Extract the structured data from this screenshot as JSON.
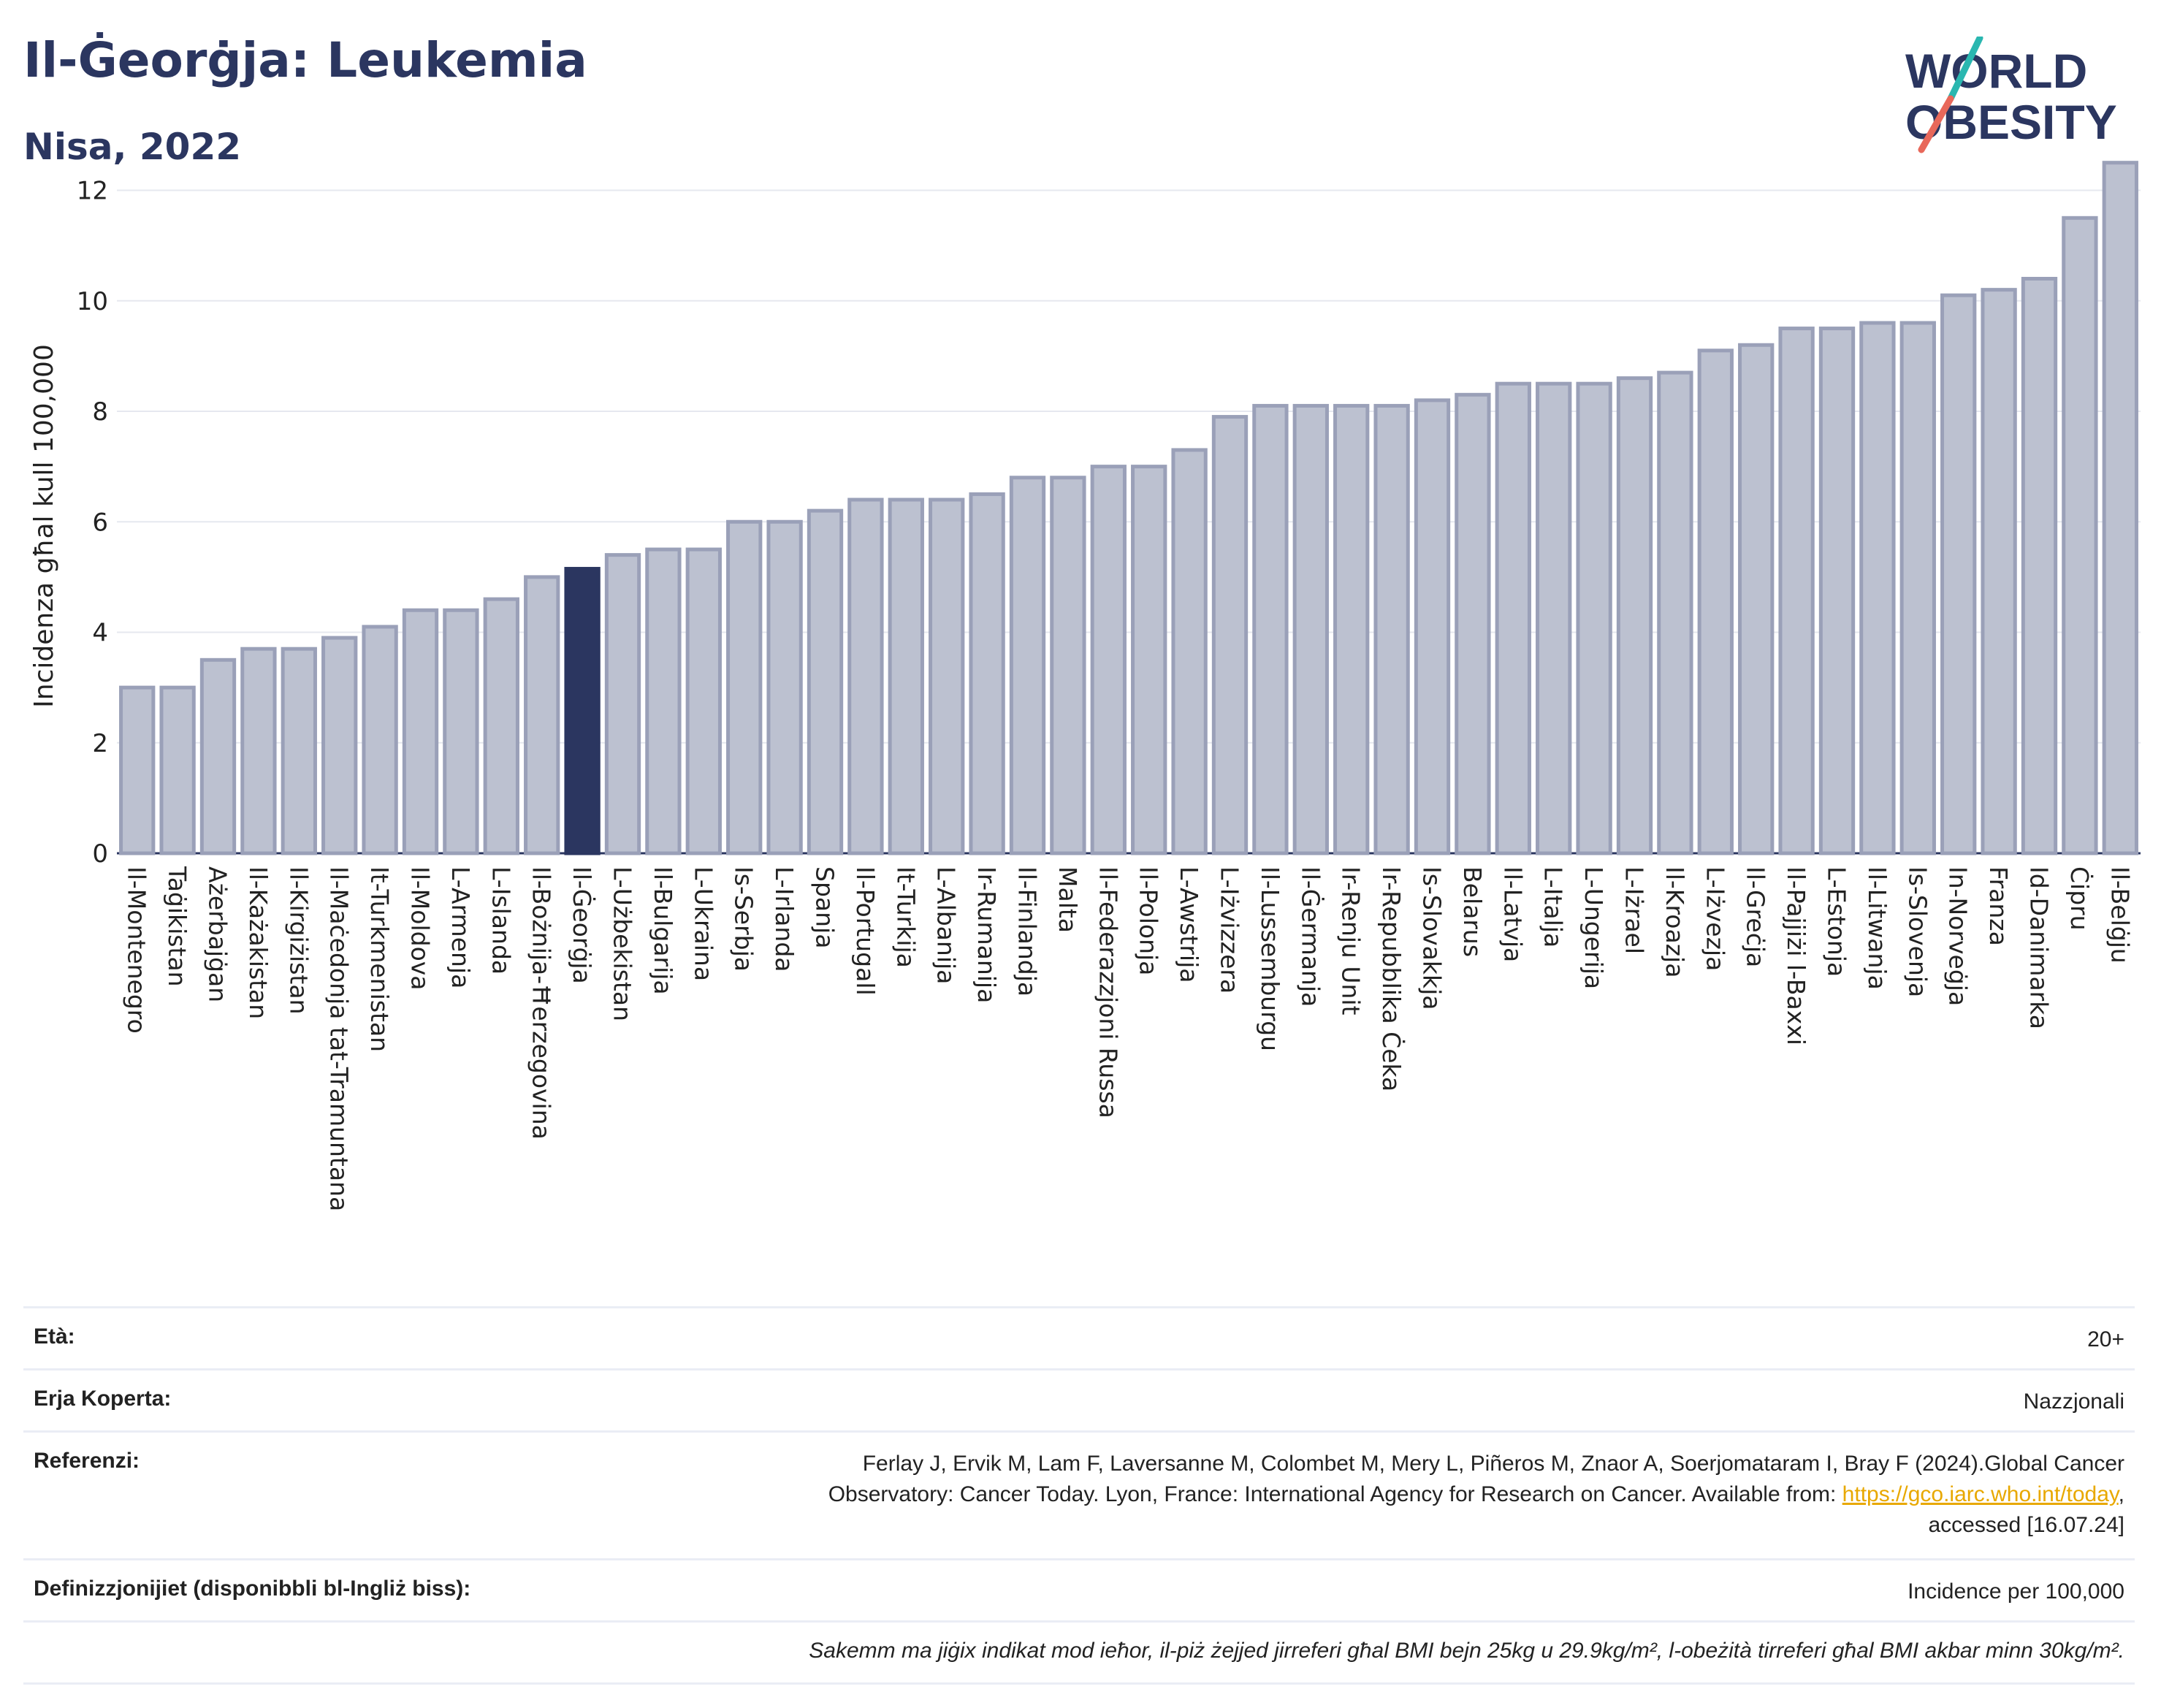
{
  "header": {
    "title": "Il-Ġeorġja: Leukemia",
    "subtitle": "Nisa, 2022"
  },
  "logo": {
    "line1": "WORLD",
    "line2": "OBESITY"
  },
  "colors": {
    "highlight": "#2b3660",
    "bar": "#bcc1d0",
    "bar_edge": "#9aa0b8",
    "text": "#2b3660",
    "grid": "#e6e8ef",
    "logo_slash_top": "#2ab7b0",
    "logo_slash_bottom": "#e8685a"
  },
  "chart_data": {
    "type": "bar",
    "ylabel": "Incidenza għal kull 100,000",
    "ylim": [
      0,
      12.8
    ],
    "yticks": [
      0,
      2,
      4,
      6,
      8,
      10,
      12
    ],
    "grid": true,
    "highlight": "Il-Ġeorġja",
    "categories": [
      "Il-Montenegro",
      "Taġikistan",
      "Ażerbajġan",
      "Il-Każakistan",
      "Il-Kirgiżistan",
      "Il-Maċedonja tat-Tramuntana",
      "It-Turkmenistan",
      "Il-Moldova",
      "L-Armenja",
      "L-Islanda",
      "Il-Bożnija-Ħerzegovina",
      "Il-Ġeorġja",
      "L-Użbekistan",
      "Il-Bulgarija",
      "L-Ukraina",
      "Is-Serbja",
      "L-Irlanda",
      "Spanja",
      "Il-Portugall",
      "It-Turkija",
      "L-Albanija",
      "Ir-Rumanija",
      "Il-Finlandja",
      "Malta",
      "Il-Federazzjoni Russa",
      "Il-Polonja",
      "L-Awstrija",
      "L-Iżvizzera",
      "Il-Lussemburgu",
      "Il-Ġermanja",
      "Ir-Renju Unit",
      "Ir-Repubblika Ċeka",
      "Is-Slovakkja",
      "Belarus",
      "Il-Latvja",
      "L-Italja",
      "L-Ungerija",
      "L-Iżrael",
      "Il-Kroazja",
      "L-Iżvezja",
      "Il-Greċja",
      "Il-Pajjiżi l-Baxxi",
      "L-Estonja",
      "Il-Litwanja",
      "Is-Slovenja",
      "In-Norveġja",
      "Franza",
      "Id-Danimarka",
      "Ċipru",
      "Il-Belġju"
    ],
    "values": [
      3.0,
      3.0,
      3.5,
      3.7,
      3.7,
      3.9,
      4.1,
      4.4,
      4.4,
      4.6,
      5.0,
      5.15,
      5.4,
      5.5,
      5.5,
      6.0,
      6.0,
      6.2,
      6.4,
      6.4,
      6.4,
      6.5,
      6.8,
      6.8,
      7.0,
      7.0,
      7.3,
      7.9,
      8.1,
      8.1,
      8.1,
      8.1,
      8.2,
      8.3,
      8.5,
      8.5,
      8.5,
      8.6,
      8.7,
      9.1,
      9.2,
      9.5,
      9.5,
      9.6,
      9.6,
      10.1,
      10.2,
      10.4,
      11.5,
      12.5
    ]
  },
  "info": {
    "age_label": "Età:",
    "age_value": "20+",
    "area_label": "Erja Koperta:",
    "area_value": "Nazzjonali",
    "ref_label": "Referenzi:",
    "ref_line1": "Ferlay J, Ervik M, Lam F, Laversanne M, Colombet M, Mery L, Piñeros M, Znaor A, Soerjomataram I, Bray F (2024).Global Cancer",
    "ref_line2_pre": "Observatory: Cancer Today. Lyon, France: International Agency for Research on Cancer. Available from: ",
    "ref_link": "https://gco.iarc.who.int/today",
    "ref_line2_post": ",",
    "ref_line3": "accessed [16.07.24]",
    "def_label": "Definizzjonijiet (disponibbli bl-Ingliż biss):",
    "def_value": "Incidence per 100,000",
    "note": "Sakemm ma jiġix indikat mod ieħor, il-piż żejjed jirreferi għal BMI bejn 25kg u 29.9kg/m², l-obeżità tirreferi għal BMI akbar minn 30kg/m²."
  }
}
